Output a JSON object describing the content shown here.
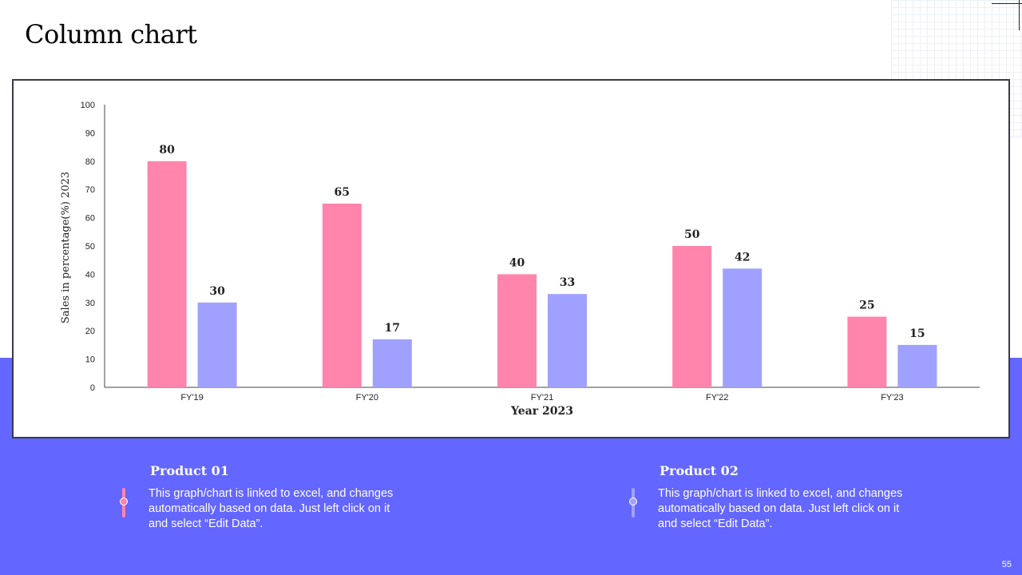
{
  "page": {
    "title": "Column chart",
    "page_number": "55"
  },
  "colors": {
    "band": "#6366ff",
    "product01": "#ff85ad",
    "product02": "#a0a1ff",
    "axis": "#444444",
    "text": "#222222"
  },
  "chart_data": {
    "type": "bar",
    "categories": [
      "FY'19",
      "FY'20",
      "FY'21",
      "FY'22",
      "FY'23"
    ],
    "series": [
      {
        "name": "Product 01",
        "values": [
          80,
          65,
          40,
          50,
          25
        ]
      },
      {
        "name": "Product 02",
        "values": [
          30,
          17,
          33,
          42,
          15
        ]
      }
    ],
    "ylim": [
      0,
      100
    ],
    "yticks": [
      0,
      10,
      20,
      30,
      40,
      50,
      60,
      70,
      80,
      90,
      100
    ],
    "xlabel": "Year 2023",
    "ylabel": "Sales in percentage(%) 2023",
    "grid": false,
    "legend": "below"
  },
  "legend": [
    {
      "title": "Product 01",
      "text": "This graph/chart is linked to excel, and changes automatically based on data. Just left click on it and select “Edit Data”."
    },
    {
      "title": "Product 02",
      "text": "This graph/chart is linked to excel, and changes automatically based on data. Just left click on it and select “Edit Data”."
    }
  ]
}
